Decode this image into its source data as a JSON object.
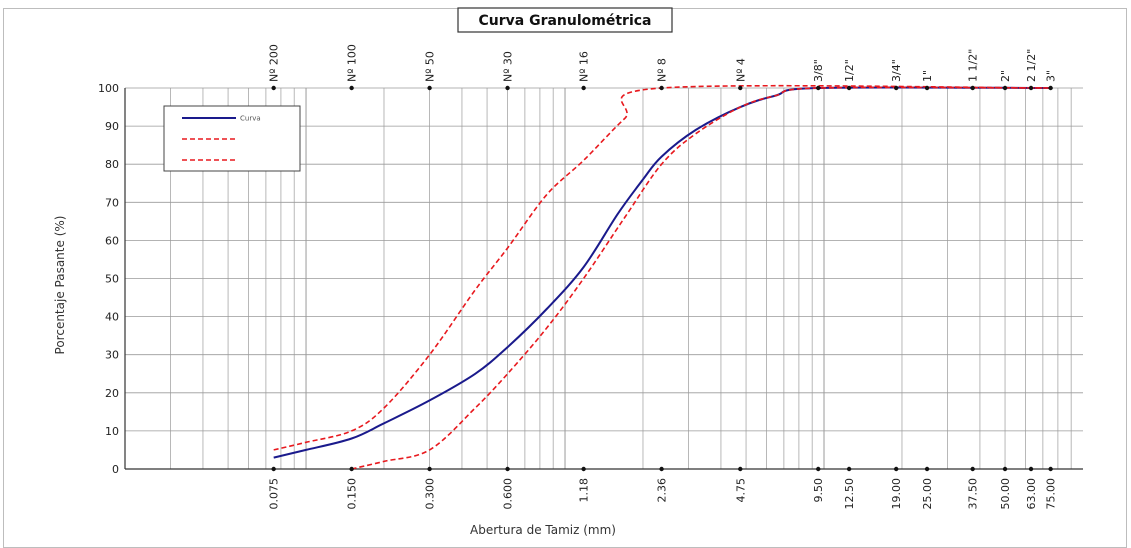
{
  "chart_data": {
    "type": "line",
    "title": "Curva Granulométrica",
    "xlabel": "Abertura de Tamiz (mm)",
    "ylabel": "Porcentaje Pasante (%)",
    "x_scale": "log",
    "ylim": [
      0,
      100
    ],
    "yticks": [
      0,
      10,
      20,
      30,
      40,
      50,
      60,
      70,
      80,
      90,
      100
    ],
    "grid": true,
    "legend_position": "top-left",
    "sieves": [
      {
        "name": "Nº 200",
        "opening": "0.075",
        "mm": 0.075
      },
      {
        "name": "Nº 100",
        "opening": "0.150",
        "mm": 0.15
      },
      {
        "name": "Nº 50",
        "opening": "0.300",
        "mm": 0.3
      },
      {
        "name": "Nº 30",
        "opening": "0.600",
        "mm": 0.6
      },
      {
        "name": "Nº 16",
        "opening": "1.18",
        "mm": 1.18
      },
      {
        "name": "Nº 8",
        "opening": "2.36",
        "mm": 2.36
      },
      {
        "name": "Nº 4",
        "opening": "4.75",
        "mm": 4.75
      },
      {
        "name": "3/8\"",
        "opening": "9.50",
        "mm": 9.5
      },
      {
        "name": "1/2\"",
        "opening": "12.50",
        "mm": 12.5
      },
      {
        "name": "3/4\"",
        "opening": "19.00",
        "mm": 19.0
      },
      {
        "name": "1\"",
        "opening": "25.00",
        "mm": 25.0
      },
      {
        "name": "1 1/2\"",
        "opening": "37.50",
        "mm": 37.5
      },
      {
        "name": "2\"",
        "opening": "50.00",
        "mm": 50.0
      },
      {
        "name": "2 1/2\"",
        "opening": "63.00",
        "mm": 63.0
      },
      {
        "name": "3\"",
        "opening": "75.00",
        "mm": 75.0
      }
    ],
    "series": [
      {
        "name": "Curva",
        "color": "#1a1a8c",
        "style": "solid",
        "points": [
          [
            0.075,
            3
          ],
          [
            0.1,
            5
          ],
          [
            0.15,
            8
          ],
          [
            0.2,
            12
          ],
          [
            0.3,
            18
          ],
          [
            0.45,
            25
          ],
          [
            0.6,
            32
          ],
          [
            0.85,
            42
          ],
          [
            1.18,
            53
          ],
          [
            1.6,
            67
          ],
          [
            2.0,
            76
          ],
          [
            2.36,
            82
          ],
          [
            3.2,
            89
          ],
          [
            4.75,
            95
          ],
          [
            6.5,
            98
          ],
          [
            9.5,
            100
          ],
          [
            75.0,
            100
          ]
        ]
      },
      {
        "name": "",
        "color": "#e8191e",
        "style": "dashed",
        "points": [
          [
            0.075,
            5
          ],
          [
            0.1,
            7
          ],
          [
            0.15,
            10
          ],
          [
            0.2,
            16
          ],
          [
            0.3,
            30
          ],
          [
            0.45,
            47
          ],
          [
            0.6,
            58
          ],
          [
            0.85,
            72
          ],
          [
            1.18,
            81
          ],
          [
            1.7,
            92
          ],
          [
            2.36,
            100
          ],
          [
            75.0,
            100
          ]
        ]
      },
      {
        "name": "",
        "color": "#e8191e",
        "style": "dashed",
        "points": [
          [
            0.15,
            0
          ],
          [
            0.2,
            2
          ],
          [
            0.3,
            5
          ],
          [
            0.45,
            16
          ],
          [
            0.6,
            25
          ],
          [
            0.85,
            37
          ],
          [
            1.18,
            50
          ],
          [
            1.7,
            66
          ],
          [
            2.36,
            80
          ],
          [
            3.2,
            88
          ],
          [
            4.75,
            95
          ],
          [
            6.5,
            98
          ],
          [
            9.5,
            100
          ],
          [
            75.0,
            100
          ]
        ]
      }
    ],
    "colors": {
      "grid": "#9a9a9a",
      "axis": "#333333",
      "marker": "#111111"
    }
  }
}
